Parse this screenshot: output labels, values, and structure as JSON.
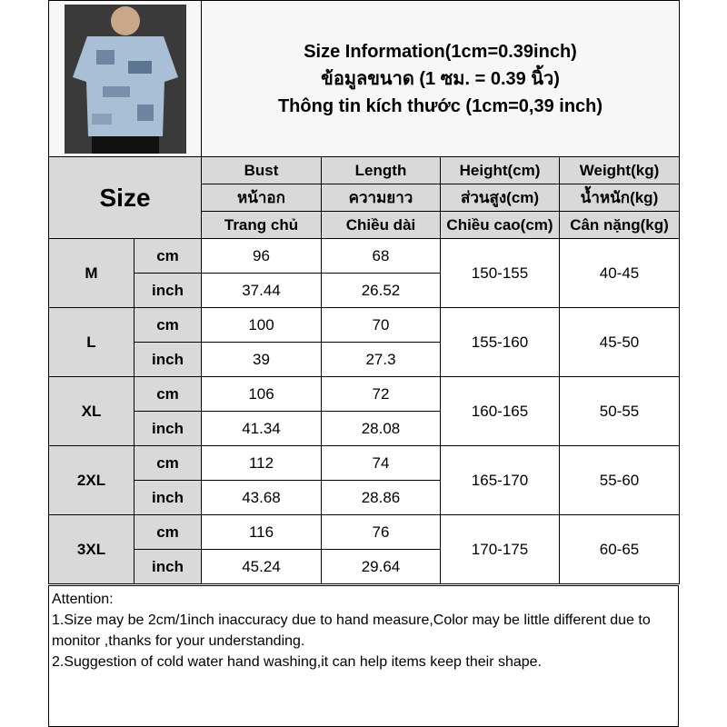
{
  "title": {
    "line1": "Size Information(1cm=0.39inch)",
    "line2": "ข้อมูลขนาด (1 ซม. = 0.39 นิ้ว)",
    "line3": "Thông tin kích thước (1cm=0,39 inch)"
  },
  "size_label": "Size",
  "headers": [
    [
      "Bust",
      "Length",
      "Height(cm)",
      "Weight(kg)"
    ],
    [
      "หน้าอก",
      "ความยาว",
      "ส่วนสูง(cm)",
      "น้ำหนัก(kg)"
    ],
    [
      "Trang chủ",
      "Chiều dài",
      "Chiều cao(cm)",
      "Cân nặng(kg)"
    ]
  ],
  "rows": [
    {
      "size": "M",
      "cm": {
        "unit": "cm",
        "bust": "96",
        "length": "68"
      },
      "inch": {
        "unit": "inch",
        "bust": "37.44",
        "length": "26.52"
      },
      "height": "150-155",
      "weight": "40-45"
    },
    {
      "size": "L",
      "cm": {
        "unit": "cm",
        "bust": "100",
        "length": "70"
      },
      "inch": {
        "unit": "inch",
        "bust": "39",
        "length": "27.3"
      },
      "height": "155-160",
      "weight": "45-50"
    },
    {
      "size": "XL",
      "cm": {
        "unit": "cm",
        "bust": "106",
        "length": "72"
      },
      "inch": {
        "unit": "inch",
        "bust": "41.34",
        "length": "28.08"
      },
      "height": "160-165",
      "weight": "50-55"
    },
    {
      "size": "2XL",
      "cm": {
        "unit": "cm",
        "bust": "112",
        "length": "74"
      },
      "inch": {
        "unit": "inch",
        "bust": "43.68",
        "length": "28.86"
      },
      "height": "165-170",
      "weight": "55-60"
    },
    {
      "size": "3XL",
      "cm": {
        "unit": "cm",
        "bust": "116",
        "length": "76"
      },
      "inch": {
        "unit": "inch",
        "bust": "45.24",
        "length": "29.64"
      },
      "height": "170-175",
      "weight": "60-65"
    }
  ],
  "attention": {
    "heading": "Attention:",
    "line1": "1.Size may be 2cm/1inch inaccuracy due to hand measure,Color may be little different due to monitor ,thanks for your understanding.",
    "line2": "2.Suggestion of cold water hand washing,it can help items keep their shape."
  }
}
